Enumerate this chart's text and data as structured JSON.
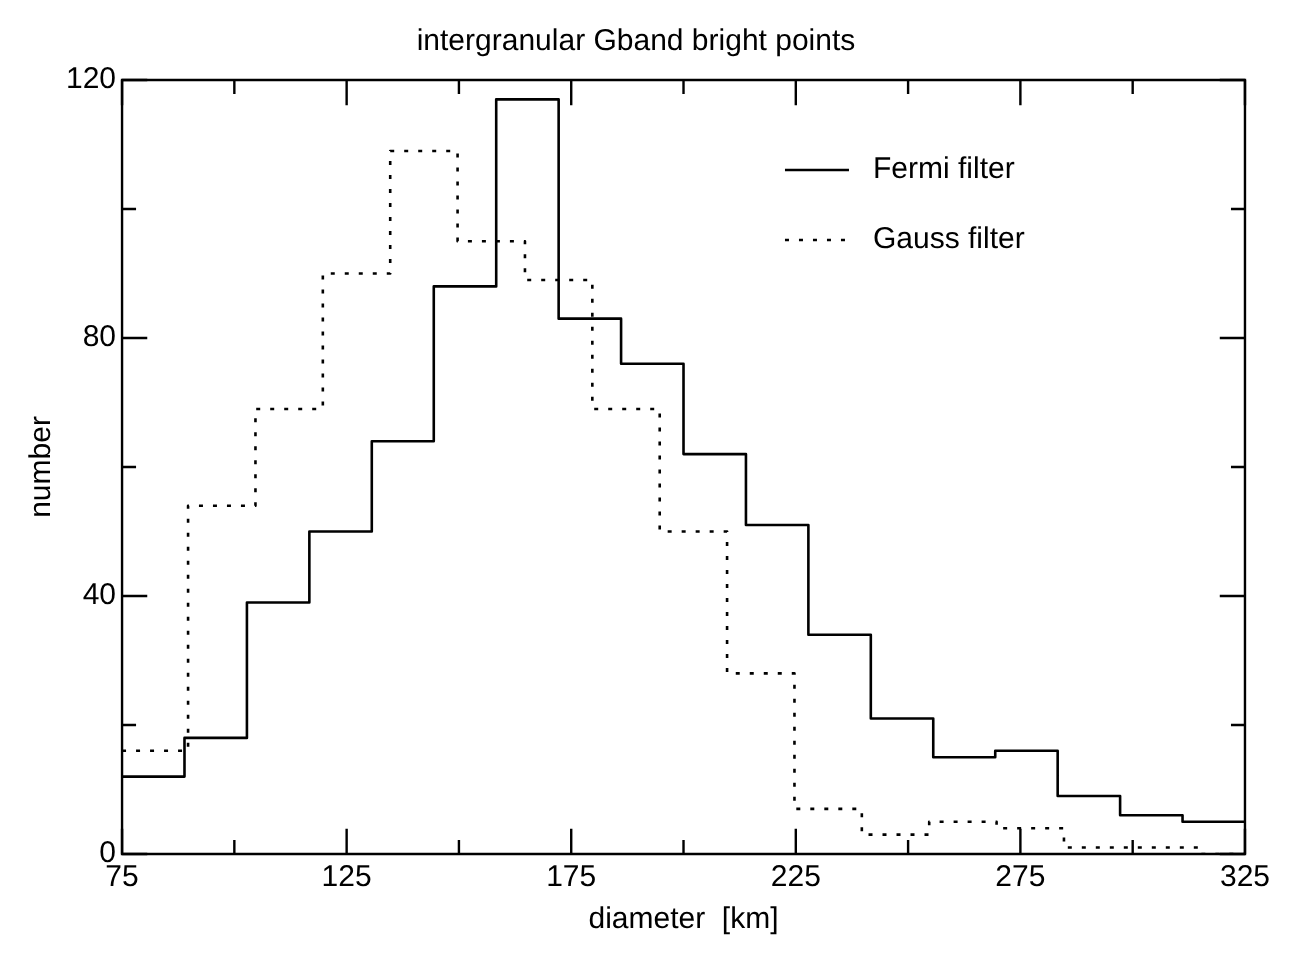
{
  "chart_data": {
    "type": "step",
    "title": "intergranular Gband bright points",
    "xlabel": "diameter  [km]",
    "ylabel": "number",
    "xlim": [
      75,
      325
    ],
    "xticks": [
      75,
      {
        "value": 100,
        "label": null
      },
      125,
      {
        "value": 150,
        "label": null
      },
      175,
      {
        "value": 200,
        "label": null
      },
      225,
      {
        "value": 250,
        "label": null
      },
      275,
      {
        "value": 300,
        "label": null
      },
      325
    ],
    "ylim": [
      0,
      120
    ],
    "yticks": [
      0,
      {
        "value": 20,
        "label": null
      },
      40,
      {
        "value": 60,
        "label": null
      },
      80,
      {
        "value": 100,
        "label": null
      },
      120
    ],
    "grid": false,
    "legend": "top right",
    "series": [
      {
        "name": "Fermi filter",
        "color": "#000000",
        "line_style": "solid",
        "x": [
          75,
          88.9,
          102.8,
          116.7,
          130.6,
          144.4,
          158.3,
          172.2,
          186.1,
          200,
          213.9,
          227.8,
          241.7,
          255.6,
          269.4,
          283.3,
          297.2,
          311.1,
          325
        ],
        "values": [
          12,
          18,
          39,
          50,
          64,
          88,
          117,
          83,
          76,
          62,
          51,
          34,
          21,
          15,
          16,
          9,
          6,
          5,
          5
        ]
      },
      {
        "name": "Gauss filter",
        "color": "#000000",
        "line_style": "dotted",
        "x": [
          75,
          89.7,
          104.7,
          119.7,
          134.7,
          149.7,
          164.7,
          179.7,
          194.7,
          209.7,
          224.7,
          239.7,
          254.7,
          269.7,
          284.7,
          299.7,
          314.7,
          325
        ],
        "values": [
          16,
          54,
          69,
          90,
          109,
          95,
          89,
          69,
          50,
          28,
          7,
          3,
          5,
          4,
          1,
          1,
          0,
          0
        ]
      }
    ]
  }
}
